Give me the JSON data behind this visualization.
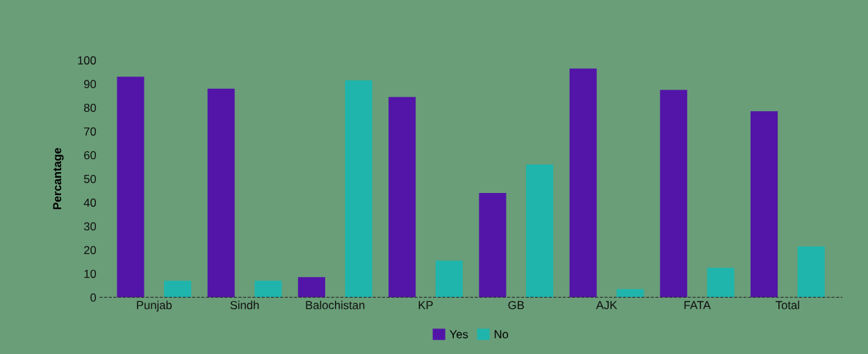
{
  "chart_data": {
    "type": "bar",
    "ylabel": "Percantage",
    "categories": [
      "Punjab",
      "Sindh",
      "Balochistan",
      "KP",
      "GB",
      "AJK",
      "FATA",
      "Total"
    ],
    "series": [
      {
        "name": "Yes",
        "color": "#5215a8",
        "values": [
          93,
          88,
          8.5,
          84.5,
          44,
          96.5,
          87.5,
          78.5
        ]
      },
      {
        "name": "No",
        "color": "#1fb5ac",
        "values": [
          7,
          7,
          91.5,
          15.5,
          56,
          3.5,
          12.5,
          21.5
        ]
      }
    ],
    "ylim": [
      0,
      100
    ],
    "yticks": [
      0,
      10,
      20,
      30,
      40,
      50,
      60,
      70,
      80,
      90,
      100
    ],
    "grid": false,
    "legend": "bottom"
  }
}
